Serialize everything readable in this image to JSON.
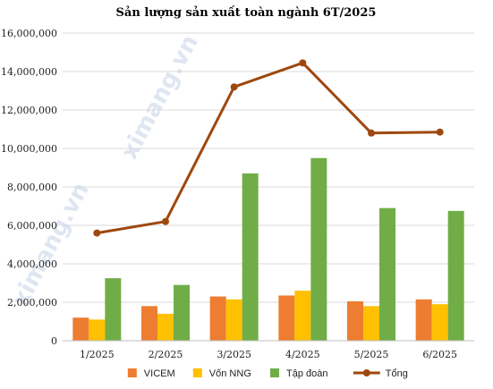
{
  "chart_data": {
    "type": "bar",
    "title": "Sản lượng sản xuất toàn ngành 6T/2025",
    "categories": [
      "1/2025",
      "2/2025",
      "3/2025",
      "4/2025",
      "5/2025",
      "6/2025"
    ],
    "ylim": [
      0,
      16000000
    ],
    "yticks": [
      0,
      2000000,
      4000000,
      6000000,
      8000000,
      10000000,
      12000000,
      14000000,
      16000000
    ],
    "ytick_labels": [
      "0",
      "2,000,000",
      "4,000,000",
      "6,000,000",
      "8,000,000",
      "10,000,000",
      "12,000,000",
      "14,000,000",
      "16,000,000"
    ],
    "grid": true,
    "legend_position": "bottom",
    "series": [
      {
        "name": "VICEM",
        "kind": "bar",
        "color": "#ed7d31",
        "values": [
          1200000,
          1800000,
          2300000,
          2350000,
          2050000,
          2150000
        ]
      },
      {
        "name": "Vốn NNG",
        "kind": "bar",
        "color": "#ffc000",
        "values": [
          1100000,
          1400000,
          2150000,
          2600000,
          1800000,
          1900000
        ]
      },
      {
        "name": "Tập đoàn",
        "kind": "bar",
        "color": "#70ad47",
        "values": [
          3250000,
          2900000,
          8700000,
          9500000,
          6900000,
          6750000
        ]
      },
      {
        "name": "Tổng",
        "kind": "line",
        "color": "#9e480e",
        "values": [
          5600000,
          6200000,
          13200000,
          14450000,
          10800000,
          10850000
        ]
      }
    ]
  },
  "watermark": {
    "text": "ximang.vn"
  }
}
